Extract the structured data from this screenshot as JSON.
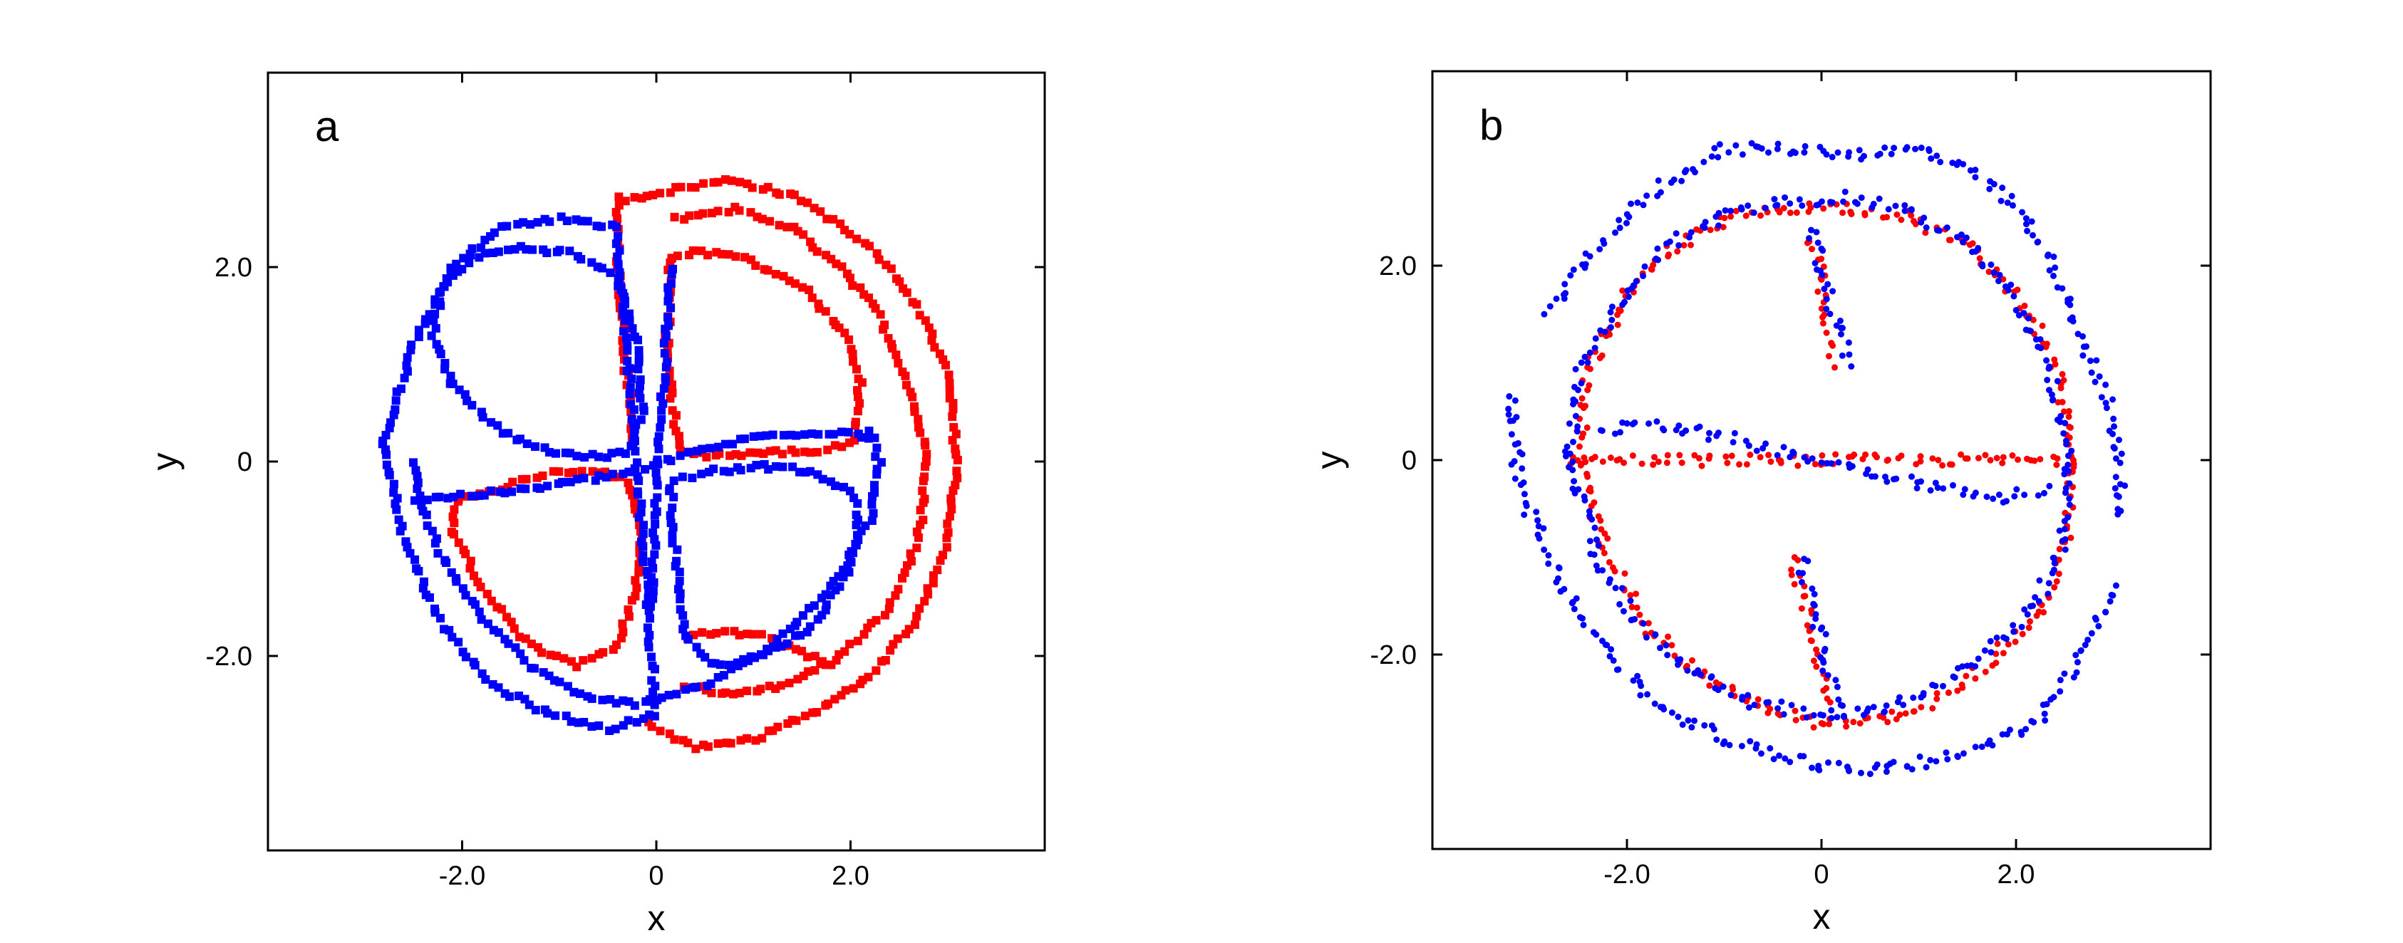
{
  "chart_data": [
    {
      "type": "scatter",
      "panel_label": "a",
      "xlabel": "x",
      "ylabel": "y",
      "xlim": [
        -4.0,
        4.0
      ],
      "ylim": [
        -4.0,
        4.0
      ],
      "xticks": [
        -2.0,
        0,
        2.0
      ],
      "yticks": [
        -2.0,
        0,
        2.0
      ],
      "xtick_labels": [
        "-2.0",
        "0",
        "2.0"
      ],
      "ytick_labels": [
        "-2.0",
        "0",
        "2.0"
      ],
      "grid": false,
      "marker": "square",
      "series": [
        {
          "color": "#ff0000",
          "curves": [
            {
              "x": [
                -2.05,
                -1.8,
                -1.4,
                -1.0,
                -0.6,
                -0.3,
                -0.15,
                -0.2,
                -0.4,
                -0.8,
                -1.3,
                -1.8,
                -2.1,
                -2.05
              ],
              "y": [
                -0.4,
                -0.35,
                -0.2,
                -0.1,
                -0.1,
                -0.2,
                -0.7,
                -1.3,
                -1.9,
                -2.1,
                -1.9,
                -1.3,
                -0.7,
                -0.4
              ]
            },
            {
              "x": [
                0.15,
                0.4,
                0.9,
                1.5,
                1.95,
                2.1,
                2.05,
                1.6,
                1.1,
                0.6,
                0.25,
                0.1,
                0.15
              ],
              "y": [
                2.1,
                2.15,
                2.1,
                1.8,
                1.3,
                0.8,
                0.2,
                0.1,
                0.1,
                0.05,
                0.1,
                1.0,
                2.1
              ]
            },
            {
              "x": [
                -0.3,
                0.2,
                0.8,
                1.5,
                2.2,
                2.7,
                3.0,
                3.1,
                3.0,
                2.7,
                2.2,
                1.6,
                1.0,
                0.4,
                -0.1
              ],
              "y": [
                2.7,
                2.8,
                2.9,
                2.7,
                2.2,
                1.6,
                0.9,
                0.0,
                -0.8,
                -1.6,
                -2.2,
                -2.6,
                -2.85,
                -2.95,
                -2.7
              ]
            },
            {
              "x": [
                0.2,
                0.8,
                1.4,
                1.9,
                2.3,
                2.6,
                2.8,
                2.7,
                2.4,
                1.9,
                1.3,
                0.8,
                0.3
              ],
              "y": [
                2.5,
                2.6,
                2.4,
                2.0,
                1.5,
                0.8,
                0.0,
                -0.8,
                -1.5,
                -2.0,
                -2.3,
                -2.4,
                -2.3
              ]
            },
            {
              "x": [
                -0.4,
                -0.4,
                -0.35,
                -0.3,
                -0.25
              ],
              "y": [
                2.7,
                2.2,
                1.5,
                0.8,
                0.2
              ]
            },
            {
              "x": [
                0.3,
                0.7,
                1.1,
                1.5,
                1.8
              ],
              "y": [
                -1.8,
                -1.75,
                -1.8,
                -1.95,
                -2.1
              ]
            }
          ]
        },
        {
          "color": "#0000ff",
          "curves": [
            {
              "x": [
                -2.1,
                -2.3,
                -2.2,
                -1.9,
                -1.4,
                -0.9,
                -0.4,
                -0.2,
                -0.15,
                -0.3,
                -0.6,
                -1.1,
                -1.6,
                -2.1
              ],
              "y": [
                0.8,
                1.3,
                1.8,
                2.1,
                2.2,
                2.15,
                1.9,
                1.3,
                0.5,
                0.1,
                0.05,
                0.1,
                0.3,
                0.8
              ]
            },
            {
              "x": [
                0.15,
                0.2,
                0.3,
                0.6,
                1.1,
                1.6,
                1.95,
                2.1,
                2.0,
                1.6,
                1.1,
                0.6,
                0.2,
                0.15
              ],
              "y": [
                -0.3,
                -1.0,
                -1.8,
                -2.1,
                -2.0,
                -1.7,
                -1.2,
                -0.6,
                -0.3,
                -0.1,
                -0.05,
                -0.1,
                -0.2,
                -0.3
              ]
            },
            {
              "x": [
                -2.5,
                -2.4,
                -2.2,
                -1.8,
                -1.3,
                -0.8,
                -0.2,
                0.5,
                1.2,
                1.8,
                2.2,
                2.3,
                2.2
              ],
              "y": [
                0.0,
                -0.5,
                -1.0,
                -1.6,
                -2.1,
                -2.4,
                -2.5,
                -2.3,
                -1.9,
                -1.3,
                -0.6,
                0.0,
                0.3
              ]
            },
            {
              "x": [
                -2.8,
                -2.6,
                -2.2,
                -1.7,
                -1.1,
                -0.5,
                0.0,
                -0.4,
                -1.0,
                -1.6,
                -2.1,
                -2.5,
                -2.8
              ],
              "y": [
                0.2,
                -0.8,
                -1.7,
                -2.3,
                -2.6,
                -2.75,
                -2.6,
                2.4,
                2.5,
                2.4,
                2.0,
                1.2,
                0.2
              ]
            },
            {
              "x": [
                -2.5,
                -2.0,
                -1.4,
                -0.8,
                -0.2,
                0.4,
                1.0,
                1.6,
                2.0,
                2.2
              ],
              "y": [
                -0.4,
                -0.35,
                -0.3,
                -0.2,
                -0.1,
                0.1,
                0.25,
                0.3,
                0.3,
                0.25
              ]
            },
            {
              "x": [
                0.15,
                0.1,
                0.05,
                0.0,
                -0.05
              ],
              "y": [
                2.0,
                1.2,
                0.5,
                -0.5,
                -1.5
              ]
            }
          ]
        }
      ]
    },
    {
      "type": "scatter",
      "panel_label": "b",
      "xlabel": "x",
      "ylabel": "y",
      "xlim": [
        -4.0,
        4.0
      ],
      "ylim": [
        -4.0,
        4.0
      ],
      "xticks": [
        -2.0,
        0,
        2.0
      ],
      "yticks": [
        -2.0,
        0,
        2.0
      ],
      "xtick_labels": [
        "-2.0",
        "0",
        "2.0"
      ],
      "ytick_labels": [
        "-2.0",
        "0",
        "2.0"
      ],
      "grid": false,
      "marker": "dot",
      "series": [
        {
          "color": "#ff0000",
          "curves": [
            {
              "x": [
                -2.5,
                -2.4,
                -2.0,
                -1.5,
                -0.9,
                -0.3,
                0.3,
                0.9,
                1.5,
                2.0,
                2.4,
                2.6,
                2.5,
                2.2,
                1.7,
                1.1,
                0.5,
                -0.1,
                -0.7,
                -1.3,
                -1.8,
                -2.2,
                -2.5
              ],
              "y": [
                0.0,
                0.9,
                1.7,
                2.2,
                2.5,
                2.6,
                2.6,
                2.5,
                2.2,
                1.7,
                1.0,
                0.0,
                -0.9,
                -1.6,
                -2.1,
                -2.5,
                -2.7,
                -2.7,
                -2.5,
                -2.2,
                -1.7,
                -1.0,
                0.0
              ]
            },
            {
              "x": [
                -2.6,
                -2.1,
                -1.6,
                -1.1,
                -0.6,
                0.6,
                1.1,
                1.6,
                2.1,
                2.6
              ],
              "y": [
                0.0,
                0.0,
                0.0,
                0.0,
                0.0,
                0.0,
                0.0,
                0.0,
                0.0,
                0.0
              ]
            },
            {
              "x": [
                -0.1,
                0.0,
                0.05,
                0.1,
                0.15
              ],
              "y": [
                2.3,
                1.9,
                1.5,
                1.2,
                1.0
              ]
            },
            {
              "x": [
                -0.3,
                -0.2,
                -0.1,
                0.0,
                0.1
              ],
              "y": [
                -1.0,
                -1.4,
                -1.8,
                -2.2,
                -2.5
              ]
            }
          ]
        },
        {
          "color": "#0000ff",
          "curves": [
            {
              "x": [
                -2.6,
                -2.5,
                -2.1,
                -1.6,
                -1.0,
                -0.4,
                0.2,
                0.8,
                1.4,
                1.9,
                2.3,
                2.55,
                2.5,
                2.2,
                1.7,
                1.1,
                0.5,
                -0.1,
                -0.7,
                -1.3,
                -1.9,
                -2.3,
                -2.6
              ],
              "y": [
                0.0,
                0.9,
                1.6,
                2.2,
                2.5,
                2.65,
                2.7,
                2.6,
                2.3,
                1.8,
                1.1,
                0.1,
                -0.8,
                -1.5,
                -2.0,
                -2.4,
                -2.6,
                -2.6,
                -2.5,
                -2.2,
                -1.7,
                -1.0,
                0.0
              ]
            },
            {
              "x": [
                -2.8,
                -2.3,
                -1.7,
                -1.0,
                -0.3,
                0.4,
                1.0,
                1.5,
                2.0,
                2.4,
                2.7,
                3.0,
                3.1
              ],
              "y": [
                1.5,
                2.2,
                2.8,
                3.2,
                3.2,
                3.15,
                3.2,
                3.0,
                2.6,
                2.0,
                1.2,
                0.4,
                -0.6
              ]
            },
            {
              "x": [
                3.0,
                2.7,
                2.3,
                1.8,
                1.1,
                0.5,
                -0.2,
                -0.9,
                -1.6,
                -2.2,
                -2.7,
                -3.1,
                -3.2
              ],
              "y": [
                -1.3,
                -2.0,
                -2.6,
                -2.9,
                -3.1,
                -3.2,
                -3.1,
                -2.9,
                -2.6,
                -2.0,
                -1.2,
                -0.3,
                0.7
              ]
            },
            {
              "x": [
                -0.1,
                0.0,
                0.1,
                0.2,
                0.3
              ],
              "y": [
                2.4,
                2.0,
                1.6,
                1.3,
                1.0
              ]
            },
            {
              "x": [
                -0.2,
                -0.1,
                0.0,
                0.1,
                0.2
              ],
              "y": [
                -1.0,
                -1.5,
                -1.9,
                -2.3,
                -2.6
              ]
            },
            {
              "x": [
                -2.3,
                -1.8,
                -1.3,
                1.3,
                1.8,
                2.3
              ],
              "y": [
                0.3,
                0.4,
                0.3,
                -0.3,
                -0.4,
                -0.3
              ]
            }
          ]
        }
      ]
    }
  ]
}
